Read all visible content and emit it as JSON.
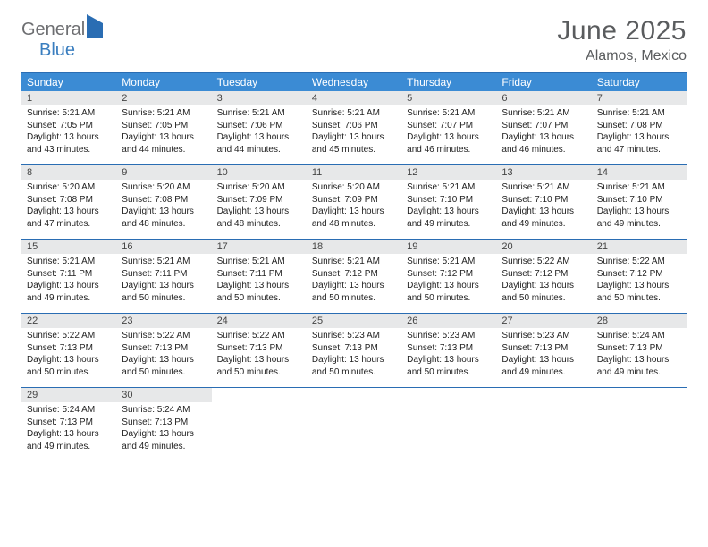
{
  "logo": {
    "word1": "General",
    "word2": "Blue"
  },
  "title": "June 2025",
  "location": "Alamos, Mexico",
  "dow": [
    "Sunday",
    "Monday",
    "Tuesday",
    "Wednesday",
    "Thursday",
    "Friday",
    "Saturday"
  ],
  "colors": {
    "header_bar": "#3b8bd4",
    "rule": "#2a6db3",
    "daynum_bg": "#e7e8e9",
    "title_text": "#5a5c5e",
    "logo_gray": "#6d6e71",
    "logo_blue": "#3a7ebf"
  },
  "weeks": [
    [
      {
        "n": "1",
        "sr": "Sunrise: 5:21 AM",
        "ss": "Sunset: 7:05 PM",
        "d1": "Daylight: 13 hours",
        "d2": "and 43 minutes."
      },
      {
        "n": "2",
        "sr": "Sunrise: 5:21 AM",
        "ss": "Sunset: 7:05 PM",
        "d1": "Daylight: 13 hours",
        "d2": "and 44 minutes."
      },
      {
        "n": "3",
        "sr": "Sunrise: 5:21 AM",
        "ss": "Sunset: 7:06 PM",
        "d1": "Daylight: 13 hours",
        "d2": "and 44 minutes."
      },
      {
        "n": "4",
        "sr": "Sunrise: 5:21 AM",
        "ss": "Sunset: 7:06 PM",
        "d1": "Daylight: 13 hours",
        "d2": "and 45 minutes."
      },
      {
        "n": "5",
        "sr": "Sunrise: 5:21 AM",
        "ss": "Sunset: 7:07 PM",
        "d1": "Daylight: 13 hours",
        "d2": "and 46 minutes."
      },
      {
        "n": "6",
        "sr": "Sunrise: 5:21 AM",
        "ss": "Sunset: 7:07 PM",
        "d1": "Daylight: 13 hours",
        "d2": "and 46 minutes."
      },
      {
        "n": "7",
        "sr": "Sunrise: 5:21 AM",
        "ss": "Sunset: 7:08 PM",
        "d1": "Daylight: 13 hours",
        "d2": "and 47 minutes."
      }
    ],
    [
      {
        "n": "8",
        "sr": "Sunrise: 5:20 AM",
        "ss": "Sunset: 7:08 PM",
        "d1": "Daylight: 13 hours",
        "d2": "and 47 minutes."
      },
      {
        "n": "9",
        "sr": "Sunrise: 5:20 AM",
        "ss": "Sunset: 7:08 PM",
        "d1": "Daylight: 13 hours",
        "d2": "and 48 minutes."
      },
      {
        "n": "10",
        "sr": "Sunrise: 5:20 AM",
        "ss": "Sunset: 7:09 PM",
        "d1": "Daylight: 13 hours",
        "d2": "and 48 minutes."
      },
      {
        "n": "11",
        "sr": "Sunrise: 5:20 AM",
        "ss": "Sunset: 7:09 PM",
        "d1": "Daylight: 13 hours",
        "d2": "and 48 minutes."
      },
      {
        "n": "12",
        "sr": "Sunrise: 5:21 AM",
        "ss": "Sunset: 7:10 PM",
        "d1": "Daylight: 13 hours",
        "d2": "and 49 minutes."
      },
      {
        "n": "13",
        "sr": "Sunrise: 5:21 AM",
        "ss": "Sunset: 7:10 PM",
        "d1": "Daylight: 13 hours",
        "d2": "and 49 minutes."
      },
      {
        "n": "14",
        "sr": "Sunrise: 5:21 AM",
        "ss": "Sunset: 7:10 PM",
        "d1": "Daylight: 13 hours",
        "d2": "and 49 minutes."
      }
    ],
    [
      {
        "n": "15",
        "sr": "Sunrise: 5:21 AM",
        "ss": "Sunset: 7:11 PM",
        "d1": "Daylight: 13 hours",
        "d2": "and 49 minutes."
      },
      {
        "n": "16",
        "sr": "Sunrise: 5:21 AM",
        "ss": "Sunset: 7:11 PM",
        "d1": "Daylight: 13 hours",
        "d2": "and 50 minutes."
      },
      {
        "n": "17",
        "sr": "Sunrise: 5:21 AM",
        "ss": "Sunset: 7:11 PM",
        "d1": "Daylight: 13 hours",
        "d2": "and 50 minutes."
      },
      {
        "n": "18",
        "sr": "Sunrise: 5:21 AM",
        "ss": "Sunset: 7:12 PM",
        "d1": "Daylight: 13 hours",
        "d2": "and 50 minutes."
      },
      {
        "n": "19",
        "sr": "Sunrise: 5:21 AM",
        "ss": "Sunset: 7:12 PM",
        "d1": "Daylight: 13 hours",
        "d2": "and 50 minutes."
      },
      {
        "n": "20",
        "sr": "Sunrise: 5:22 AM",
        "ss": "Sunset: 7:12 PM",
        "d1": "Daylight: 13 hours",
        "d2": "and 50 minutes."
      },
      {
        "n": "21",
        "sr": "Sunrise: 5:22 AM",
        "ss": "Sunset: 7:12 PM",
        "d1": "Daylight: 13 hours",
        "d2": "and 50 minutes."
      }
    ],
    [
      {
        "n": "22",
        "sr": "Sunrise: 5:22 AM",
        "ss": "Sunset: 7:13 PM",
        "d1": "Daylight: 13 hours",
        "d2": "and 50 minutes."
      },
      {
        "n": "23",
        "sr": "Sunrise: 5:22 AM",
        "ss": "Sunset: 7:13 PM",
        "d1": "Daylight: 13 hours",
        "d2": "and 50 minutes."
      },
      {
        "n": "24",
        "sr": "Sunrise: 5:22 AM",
        "ss": "Sunset: 7:13 PM",
        "d1": "Daylight: 13 hours",
        "d2": "and 50 minutes."
      },
      {
        "n": "25",
        "sr": "Sunrise: 5:23 AM",
        "ss": "Sunset: 7:13 PM",
        "d1": "Daylight: 13 hours",
        "d2": "and 50 minutes."
      },
      {
        "n": "26",
        "sr": "Sunrise: 5:23 AM",
        "ss": "Sunset: 7:13 PM",
        "d1": "Daylight: 13 hours",
        "d2": "and 50 minutes."
      },
      {
        "n": "27",
        "sr": "Sunrise: 5:23 AM",
        "ss": "Sunset: 7:13 PM",
        "d1": "Daylight: 13 hours",
        "d2": "and 49 minutes."
      },
      {
        "n": "28",
        "sr": "Sunrise: 5:24 AM",
        "ss": "Sunset: 7:13 PM",
        "d1": "Daylight: 13 hours",
        "d2": "and 49 minutes."
      }
    ],
    [
      {
        "n": "29",
        "sr": "Sunrise: 5:24 AM",
        "ss": "Sunset: 7:13 PM",
        "d1": "Daylight: 13 hours",
        "d2": "and 49 minutes."
      },
      {
        "n": "30",
        "sr": "Sunrise: 5:24 AM",
        "ss": "Sunset: 7:13 PM",
        "d1": "Daylight: 13 hours",
        "d2": "and 49 minutes."
      },
      null,
      null,
      null,
      null,
      null
    ]
  ]
}
